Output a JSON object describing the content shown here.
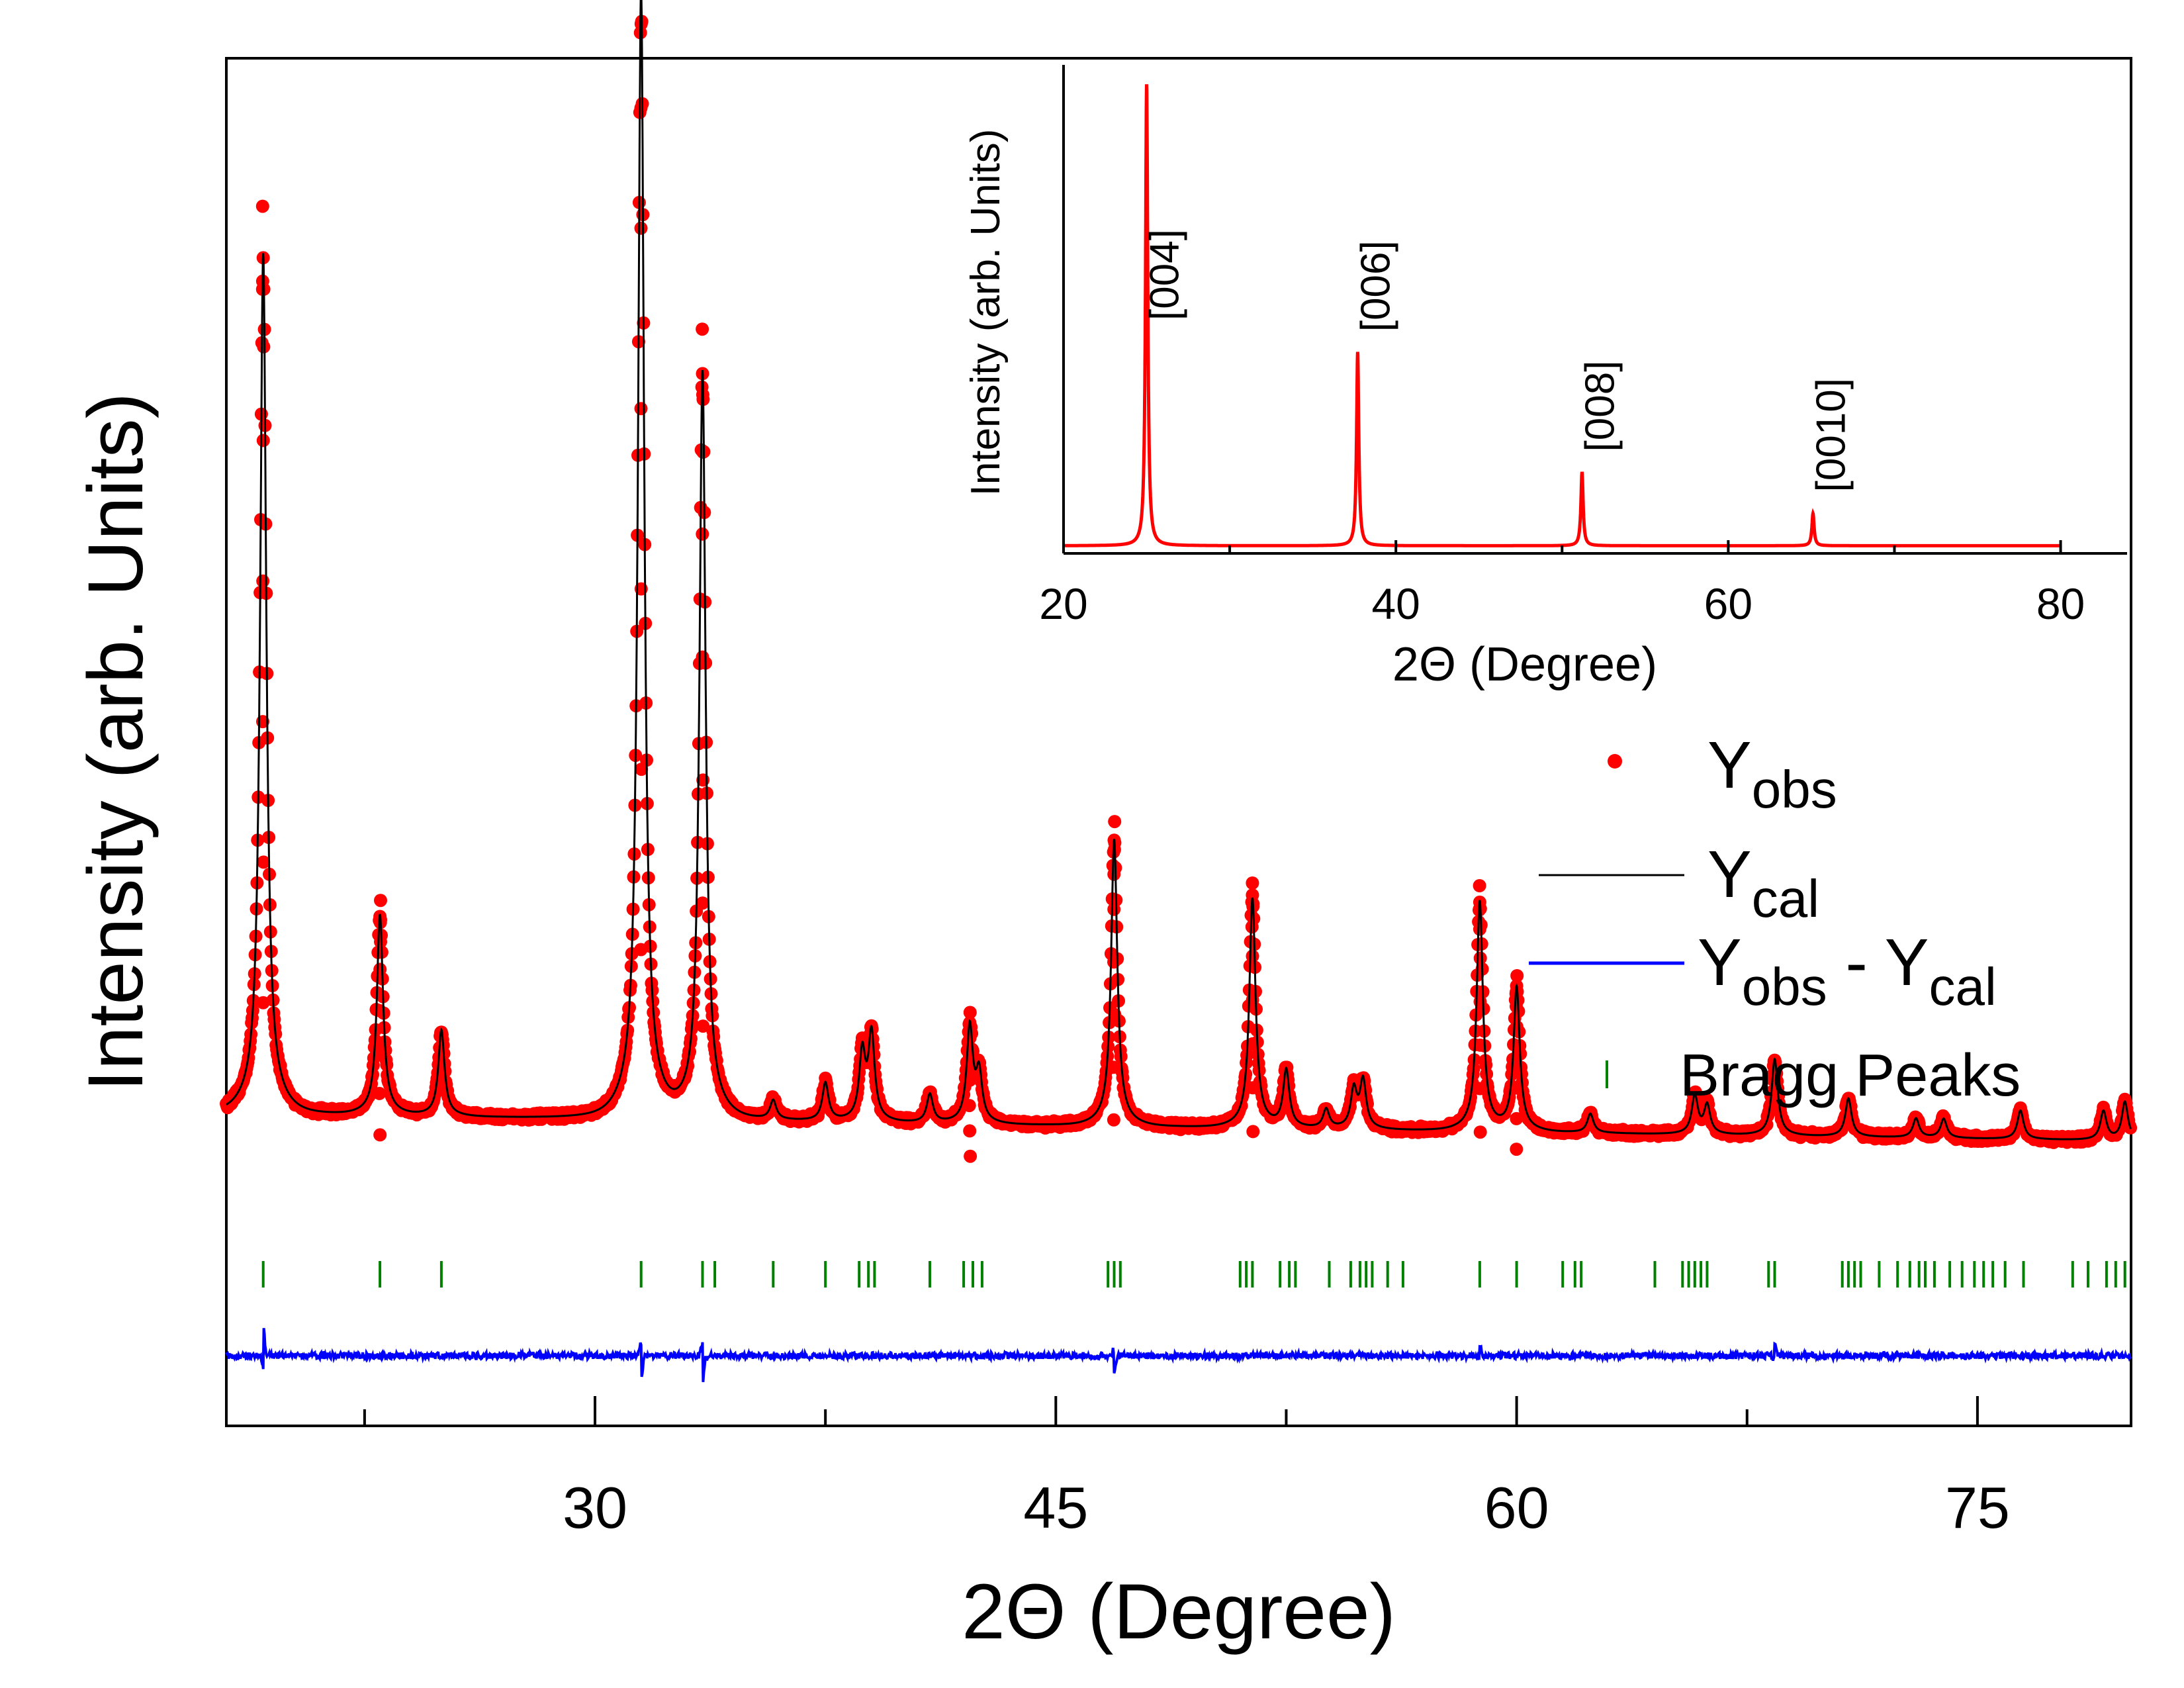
{
  "chart_data": [
    {
      "id": "main",
      "type": "line",
      "xlabel_prefix": "2",
      "xlabel_symbol": "Θ",
      "xlabel_rest": " (Degree)",
      "ylabel": "Intensity (arb. Units)",
      "xlim": [
        18,
        80
      ],
      "ylim": [
        -0.25,
        1.2
      ],
      "xticks_major": [
        30,
        45,
        60,
        75
      ],
      "xticks_minor": [
        22.5,
        37.5,
        52.5,
        67.5
      ],
      "background": 0.08,
      "peaks": [
        {
          "x": 19.2,
          "h": 0.9
        },
        {
          "x": 23.0,
          "h": 0.21
        },
        {
          "x": 25.0,
          "h": 0.09
        },
        {
          "x": 31.5,
          "h": 1.18
        },
        {
          "x": 33.5,
          "h": 0.78
        },
        {
          "x": 35.8,
          "h": 0.02
        },
        {
          "x": 37.5,
          "h": 0.04
        },
        {
          "x": 38.7,
          "h": 0.07
        },
        {
          "x": 39.0,
          "h": 0.09
        },
        {
          "x": 40.9,
          "h": 0.03
        },
        {
          "x": 42.2,
          "h": 0.1
        },
        {
          "x": 42.5,
          "h": 0.05
        },
        {
          "x": 46.9,
          "h": 0.3
        },
        {
          "x": 51.4,
          "h": 0.24
        },
        {
          "x": 52.5,
          "h": 0.06
        },
        {
          "x": 53.8,
          "h": 0.02
        },
        {
          "x": 54.7,
          "h": 0.04
        },
        {
          "x": 55.0,
          "h": 0.05
        },
        {
          "x": 58.8,
          "h": 0.24
        },
        {
          "x": 60.0,
          "h": 0.15
        },
        {
          "x": 62.4,
          "h": 0.02
        },
        {
          "x": 65.8,
          "h": 0.04
        },
        {
          "x": 66.2,
          "h": 0.03
        },
        {
          "x": 68.4,
          "h": 0.08
        },
        {
          "x": 70.8,
          "h": 0.04
        },
        {
          "x": 73.0,
          "h": 0.02
        },
        {
          "x": 73.9,
          "h": 0.02
        },
        {
          "x": 76.4,
          "h": 0.03
        },
        {
          "x": 79.1,
          "h": 0.03
        },
        {
          "x": 79.8,
          "h": 0.04
        }
      ],
      "bragg_positions": [
        19.2,
        23.0,
        25.0,
        31.5,
        33.5,
        33.9,
        35.8,
        37.5,
        38.6,
        38.9,
        39.1,
        40.9,
        42.0,
        42.3,
        42.6,
        46.7,
        46.9,
        47.1,
        51.0,
        51.2,
        51.4,
        52.3,
        52.6,
        52.8,
        53.9,
        54.6,
        54.9,
        55.1,
        55.3,
        55.8,
        56.3,
        58.8,
        60.0,
        61.5,
        61.9,
        62.1,
        64.5,
        65.4,
        65.6,
        65.8,
        66.0,
        66.2,
        68.2,
        68.4,
        70.6,
        70.8,
        71.0,
        71.2,
        71.8,
        72.4,
        72.8,
        73.1,
        73.3,
        73.6,
        74.1,
        74.5,
        74.9,
        75.2,
        75.5,
        75.9,
        76.5,
        78.1,
        78.6,
        79.2,
        79.5,
        79.8
      ],
      "residual_spikes": [
        {
          "x": 19.2,
          "v": 0.05
        },
        {
          "x": 31.5,
          "v": -0.05
        },
        {
          "x": 33.5,
          "v": -0.05
        },
        {
          "x": 46.9,
          "v": -0.03
        },
        {
          "x": 58.8,
          "v": 0.02
        },
        {
          "x": 68.4,
          "v": 0.02
        }
      ],
      "legend": [
        {
          "series": "obs",
          "label": "Y",
          "sub": "obs",
          "color": "#ff0000"
        },
        {
          "series": "cal",
          "label": "Y",
          "sub": "cal",
          "color": "#000000"
        },
        {
          "series": "diff",
          "label_a": "Y",
          "sub_a": "obs",
          "label_b": " - Y",
          "sub_b": "cal",
          "color": "#0000ff"
        },
        {
          "series": "bragg",
          "label": "Bragg Peaks",
          "color": "#008000"
        }
      ]
    },
    {
      "id": "inset",
      "type": "line",
      "xlabel_prefix": "2",
      "xlabel_symbol": "Θ",
      "xlabel_rest": " (Degree)",
      "ylabel": "Intensity (arb. Units)",
      "xlim": [
        20,
        84
      ],
      "ylim": [
        0,
        1.05
      ],
      "xticks_major": [
        20,
        40,
        60,
        80
      ],
      "xticks_minor": [
        30,
        50,
        70
      ],
      "color": "#ff0000",
      "peaks": [
        {
          "x": 25.0,
          "h": 1.0,
          "label": "[004]"
        },
        {
          "x": 37.7,
          "h": 0.42,
          "label": "[006]"
        },
        {
          "x": 51.2,
          "h": 0.16,
          "label": "[008]"
        },
        {
          "x": 65.1,
          "h": 0.07,
          "label": "[0010]"
        }
      ]
    }
  ]
}
